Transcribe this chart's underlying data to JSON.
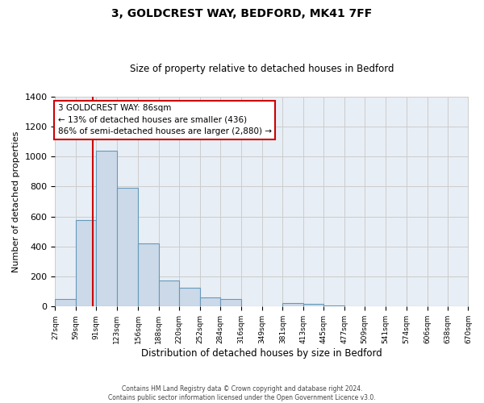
{
  "title": "3, GOLDCREST WAY, BEDFORD, MK41 7FF",
  "subtitle": "Size of property relative to detached houses in Bedford",
  "xlabel": "Distribution of detached houses by size in Bedford",
  "ylabel": "Number of detached properties",
  "bins": [
    27,
    59,
    91,
    123,
    156,
    188,
    220,
    252,
    284,
    316,
    349,
    381,
    413,
    445,
    477,
    509,
    541,
    574,
    606,
    638,
    670
  ],
  "counts": [
    50,
    575,
    1040,
    790,
    420,
    175,
    125,
    62,
    50,
    0,
    0,
    25,
    18,
    5,
    0,
    0,
    0,
    0,
    0,
    0
  ],
  "bar_facecolor": "#ccd9e8",
  "bar_edgecolor": "#6699bb",
  "grid_color": "#cccccc",
  "background_color": "#e8eef5",
  "property_line_x": 86,
  "property_line_color": "#cc0000",
  "annotation_box_edgecolor": "#cc0000",
  "annotation_text_line1": "3 GOLDCREST WAY: 86sqm",
  "annotation_text_line2": "← 13% of detached houses are smaller (436)",
  "annotation_text_line3": "86% of semi-detached houses are larger (2,880) →",
  "ylim": [
    0,
    1400
  ],
  "yticks": [
    0,
    200,
    400,
    600,
    800,
    1000,
    1200,
    1400
  ],
  "footer_line1": "Contains HM Land Registry data © Crown copyright and database right 2024.",
  "footer_line2": "Contains public sector information licensed under the Open Government Licence v3.0.",
  "tick_labels": [
    "27sqm",
    "59sqm",
    "91sqm",
    "123sqm",
    "156sqm",
    "188sqm",
    "220sqm",
    "252sqm",
    "284sqm",
    "316sqm",
    "349sqm",
    "381sqm",
    "413sqm",
    "445sqm",
    "477sqm",
    "509sqm",
    "541sqm",
    "574sqm",
    "606sqm",
    "638sqm",
    "670sqm"
  ]
}
